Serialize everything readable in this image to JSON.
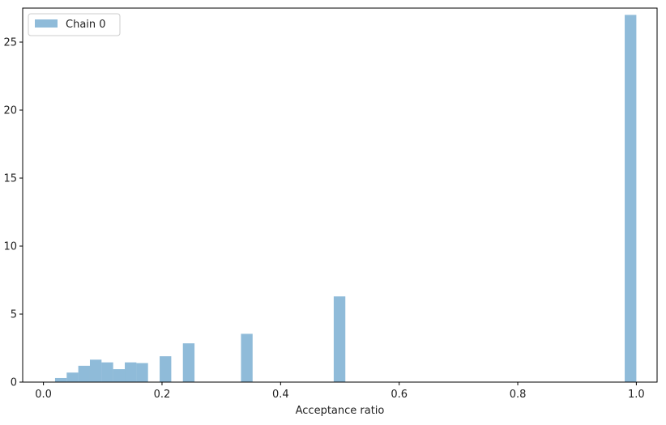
{
  "chart_data": {
    "type": "bar",
    "title": "",
    "xlabel": "Acceptance ratio",
    "ylabel": "",
    "xlim": [
      -0.035,
      1.035
    ],
    "ylim": [
      0,
      27.5
    ],
    "xticks": [
      0.0,
      0.2,
      0.4,
      0.6,
      0.8,
      1.0
    ],
    "xtick_labels": [
      "0.0",
      "0.2",
      "0.4",
      "0.6",
      "0.8",
      "1.0"
    ],
    "yticks": [
      0,
      5,
      10,
      15,
      20,
      25
    ],
    "ytick_labels": [
      "0",
      "5",
      "10",
      "15",
      "20",
      "25"
    ],
    "grid": false,
    "legend_position": "top-left",
    "bin_width": 0.0196,
    "series": [
      {
        "name": "Chain 0",
        "color": "#1f77b4",
        "opacity": 0.5,
        "bins": [
          {
            "x0": 0.0196,
            "x1": 0.0392,
            "value": 0.3
          },
          {
            "x0": 0.0392,
            "x1": 0.0588,
            "value": 0.7
          },
          {
            "x0": 0.0588,
            "x1": 0.0784,
            "value": 1.2
          },
          {
            "x0": 0.0784,
            "x1": 0.098,
            "value": 1.65
          },
          {
            "x0": 0.098,
            "x1": 0.1176,
            "value": 1.45
          },
          {
            "x0": 0.1176,
            "x1": 0.1372,
            "value": 0.95
          },
          {
            "x0": 0.1372,
            "x1": 0.1568,
            "value": 1.45
          },
          {
            "x0": 0.1568,
            "x1": 0.1764,
            "value": 1.4
          },
          {
            "x0": 0.196,
            "x1": 0.2156,
            "value": 1.9
          },
          {
            "x0": 0.2352,
            "x1": 0.2548,
            "value": 2.85
          },
          {
            "x0": 0.3332,
            "x1": 0.3528,
            "value": 3.55
          },
          {
            "x0": 0.4896,
            "x1": 0.5092,
            "value": 6.3
          },
          {
            "x0": 0.9804,
            "x1": 1.0,
            "value": 27.0
          }
        ]
      }
    ]
  }
}
